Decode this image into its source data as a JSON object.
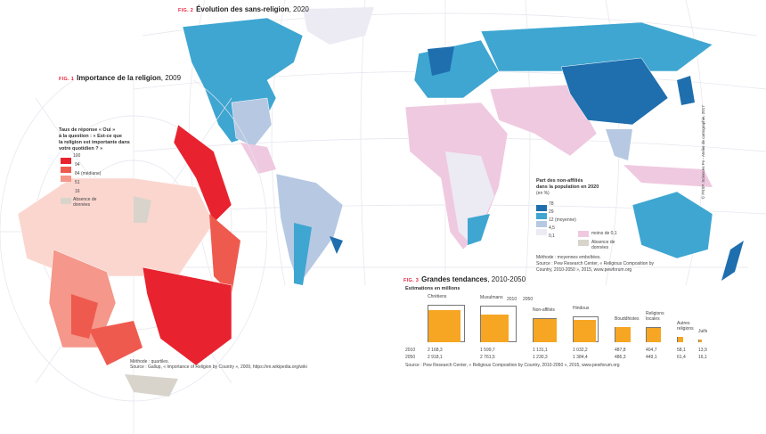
{
  "fig2": {
    "num": "FIG. 2",
    "title": "Évolution des sans-religion",
    "year": ", 2020",
    "legend_title": [
      "Part des non-affiliés",
      "dans la population en 2020"
    ],
    "legend_unit": "(en %)",
    "legend": [
      {
        "label": "78",
        "color": "#1f6fae"
      },
      {
        "label": "29",
        "color": "#3ea6d1"
      },
      {
        "label": "12  (moyenne)",
        "color": "#b6c8e2"
      },
      {
        "label": "4,5",
        "color": "#ecebf4"
      },
      {
        "label": "0,1",
        "color": ""
      }
    ],
    "extra_legend": [
      {
        "label": "moins de 0,1",
        "color": "#efc9e0"
      },
      {
        "label": "Absence de données",
        "color": "#d8d4cb"
      }
    ],
    "method": "Méthode : moyennes emboîtées.",
    "source": "Source : Pew Research Center, « Religious Composition by Country, 2010-2050 », 2015, www.pewforum.org"
  },
  "fig1": {
    "num": "FIG. 1",
    "title": "Importance de la religion",
    "year": ", 2009",
    "legend_title": [
      "Taux de réponse « Oui »",
      "à la question : « Est-ce que",
      "la religion est importante dans",
      "votre quotidien ? »"
    ],
    "legend": [
      {
        "label": "100",
        "color": "#e8232f"
      },
      {
        "label": "94",
        "color": "#ef5a4f"
      },
      {
        "label": "84  (médiane)",
        "color": "#f5978a"
      },
      {
        "label": "51",
        "color": "#fbd6cf"
      },
      {
        "label": "16",
        "color": ""
      }
    ],
    "no_data": "Absence de données",
    "no_data_color": "#d8d4cb",
    "method": "Méthode : quartiles.",
    "source": "Source : Gallup, « Importance of Religion by Country », 2009, https://en.wikipedia.org/wiki"
  },
  "fig3": {
    "num": "FIG. 3",
    "title": "Grandes tendances",
    "year": ", 2010-2050",
    "subtitle": "Estimations en millions",
    "year_labels": [
      "2010",
      "2050"
    ],
    "source": "Source : Pew Research Center, « Religious Composition by Country, 2010-2050 », 2015, www.pewforum.org"
  },
  "chart_data": {
    "type": "bar",
    "title": "Grandes tendances, 2010-2050",
    "subtitle": "Estimations en millions",
    "categories": [
      "Chrétiens",
      "Musulmans",
      "Non-affiliés",
      "Hindous",
      "Bouddhistes",
      "Religions locales",
      "Autres religions",
      "Juifs"
    ],
    "series": [
      {
        "name": "2010",
        "values": [
          2168.3,
          1599.7,
          1131.1,
          1032.2,
          487.8,
          404.7,
          58.1,
          13.9
        ],
        "labels": [
          "2 168,3",
          "1 599,7",
          "1 131,1",
          "1 032,2",
          "487,8",
          "404,7",
          "58,1",
          "13,9"
        ],
        "color": "#f6a623"
      },
      {
        "name": "2050",
        "values": [
          2918.1,
          2761.5,
          1230.3,
          1384.4,
          486.3,
          449.1,
          61.4,
          16.1
        ],
        "labels": [
          "2 918,1",
          "2 761,5",
          "1 230,3",
          "1 384,4",
          "486,3",
          "449,1",
          "61,4",
          "16,1"
        ],
        "color": "#777777"
      }
    ]
  },
  "credit": "© FNSP. Sciences Po - Atelier de cartographie, 2017"
}
